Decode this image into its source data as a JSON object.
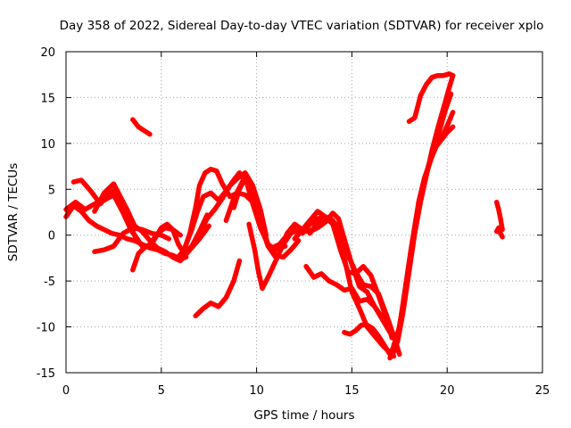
{
  "chart_data": {
    "type": "line",
    "title": "Day 358 of 2022, Sidereal Day-to-day VTEC variation (SDTVAR) for receiver xplo",
    "xlabel": "GPS time / hours",
    "ylabel": "SDTVAR / TECUs",
    "xlim": [
      0,
      25
    ],
    "ylim": [
      -15,
      20
    ],
    "xticks": [
      0,
      5,
      10,
      15,
      20,
      25
    ],
    "yticks": [
      -15,
      -10,
      -5,
      0,
      5,
      10,
      15,
      20
    ],
    "grid": true,
    "legend": "none",
    "series_color": "#ff0000",
    "series": [
      {
        "x": [
          0.0,
          0.4,
          0.8,
          1.2,
          1.6,
          2.0,
          2.4,
          2.8,
          3.2,
          3.6,
          4.0,
          4.4,
          4.8,
          5.2,
          5.6,
          6.0,
          6.3
        ],
        "y": [
          2.0,
          3.2,
          2.6,
          1.6,
          1.0,
          0.6,
          0.2,
          0.0,
          -0.4,
          -0.6,
          -1.0,
          -1.4,
          -1.6,
          -2.0,
          -2.2,
          -2.6,
          -2.4
        ]
      },
      {
        "x": [
          0.0,
          0.5,
          1.0,
          1.5,
          2.0,
          2.5,
          3.0,
          3.4,
          3.8
        ],
        "y": [
          2.8,
          3.6,
          2.8,
          3.4,
          3.8,
          4.4,
          2.4,
          0.6,
          -0.6
        ]
      },
      {
        "x": [
          0.4,
          0.8,
          1.3,
          1.8,
          2.2,
          2.6,
          3.0,
          3.4,
          3.7,
          4.0
        ],
        "y": [
          5.8,
          6.0,
          4.8,
          3.4,
          4.4,
          5.0,
          2.8,
          0.8,
          -0.4,
          -1.2
        ]
      },
      {
        "x": [
          1.5,
          2.0,
          2.5,
          2.8,
          3.2,
          3.6,
          4.0,
          4.4,
          4.8,
          5.2,
          5.6,
          6.0,
          6.5,
          7.0,
          7.5
        ],
        "y": [
          2.6,
          4.6,
          5.6,
          4.4,
          2.8,
          1.0,
          0.4,
          -0.6,
          -1.4,
          -1.8,
          -2.4,
          -2.8,
          -1.6,
          -0.4,
          1.0
        ]
      },
      {
        "x": [
          1.5,
          2.0,
          2.5,
          3.0,
          3.5,
          4.0,
          4.5,
          5.0,
          5.4
        ],
        "y": [
          -1.8,
          -1.6,
          -1.2,
          0.2,
          0.8,
          0.6,
          0.2,
          0.0,
          -0.4
        ]
      },
      {
        "x": [
          3.5,
          3.8,
          4.1,
          4.4,
          4.8,
          5.2,
          5.6,
          6.0
        ],
        "y": [
          -3.8,
          -2.0,
          -1.4,
          -1.0,
          0.2,
          0.8,
          0.6,
          0.0
        ]
      },
      {
        "x": [
          3.5,
          3.8,
          4.1,
          4.4
        ],
        "y": [
          12.6,
          11.8,
          11.4,
          11.0
        ]
      },
      {
        "x": [
          4.6,
          5.0,
          5.3,
          5.6,
          5.9,
          6.2,
          6.6,
          7.0,
          7.4
        ],
        "y": [
          -0.6,
          0.8,
          1.2,
          0.6,
          -1.0,
          -2.0,
          -1.2,
          0.4,
          2.2
        ]
      },
      {
        "x": [
          5.8,
          6.2,
          6.5,
          6.8,
          7.0,
          7.3,
          7.6,
          7.9,
          8.2,
          8.6,
          9.0,
          9.4,
          9.8,
          10.2
        ],
        "y": [
          -2.6,
          -1.6,
          0.2,
          3.0,
          5.4,
          6.8,
          7.2,
          7.0,
          5.6,
          4.2,
          4.6,
          4.4,
          3.6,
          1.8
        ]
      },
      {
        "x": [
          6.3,
          6.6,
          6.9,
          7.2,
          7.6,
          8.0,
          8.4,
          8.8,
          9.1,
          9.5,
          9.8,
          10.2,
          10.6,
          11.0,
          11.5
        ],
        "y": [
          -1.0,
          0.6,
          2.6,
          4.2,
          4.6,
          3.8,
          4.8,
          6.0,
          6.8,
          5.6,
          3.4,
          0.8,
          -1.0,
          -1.6,
          -1.2
        ]
      },
      {
        "x": [
          7.0,
          7.4,
          7.8,
          8.2,
          8.6,
          9.0,
          9.4,
          9.8,
          10.2,
          10.5
        ],
        "y": [
          0.2,
          1.8,
          2.8,
          4.0,
          5.4,
          6.2,
          6.8,
          5.4,
          2.8,
          0.0
        ]
      },
      {
        "x": [
          8.4,
          8.8,
          9.1,
          9.4,
          9.7,
          10.0,
          10.3,
          10.6,
          11.0
        ],
        "y": [
          1.6,
          4.0,
          5.2,
          6.4,
          5.2,
          2.8,
          0.6,
          -1.2,
          -2.4
        ]
      },
      {
        "x": [
          8.8,
          9.1,
          9.4,
          9.7,
          10.0,
          10.3,
          10.6,
          11.0,
          11.4,
          11.8,
          12.2
        ],
        "y": [
          3.0,
          5.0,
          6.2,
          5.6,
          3.4,
          1.0,
          -1.0,
          -2.2,
          -2.4,
          -1.6,
          -0.6
        ]
      },
      {
        "x": [
          6.8,
          7.2,
          7.6,
          8.0,
          8.4,
          8.8,
          9.1
        ],
        "y": [
          -8.8,
          -8.0,
          -7.4,
          -7.8,
          -6.8,
          -5.0,
          -2.8
        ]
      },
      {
        "x": [
          9.6,
          9.9,
          10.1,
          10.3,
          10.6,
          11.0,
          11.4,
          11.8,
          12.2,
          12.6,
          13.0
        ],
        "y": [
          1.2,
          -1.6,
          -4.0,
          -5.8,
          -4.6,
          -2.8,
          -1.0,
          0.2,
          0.8,
          0.4,
          0.6
        ]
      },
      {
        "x": [
          10.8,
          11.2,
          11.6,
          12.0,
          12.4,
          12.8,
          13.2,
          13.6,
          14.0,
          14.4,
          14.8,
          15.2,
          15.6,
          16.0,
          16.4,
          16.8,
          17.2,
          17.5
        ],
        "y": [
          -1.4,
          -1.0,
          0.0,
          0.4,
          0.2,
          1.2,
          1.8,
          2.0,
          1.6,
          0.4,
          -2.2,
          -4.0,
          -5.4,
          -5.6,
          -6.4,
          -8.6,
          -11.0,
          -13.0
        ]
      },
      {
        "x": [
          11.2,
          11.6,
          12.0,
          12.4,
          12.8,
          13.2,
          13.6,
          14.0,
          14.3,
          14.6,
          15.0,
          15.4,
          15.8,
          16.2,
          16.6,
          17.0
        ],
        "y": [
          -1.8,
          0.2,
          1.2,
          0.6,
          0.4,
          0.8,
          1.4,
          2.4,
          1.8,
          -0.4,
          -3.2,
          -5.6,
          -6.2,
          -7.8,
          -9.2,
          -10.6
        ]
      },
      {
        "x": [
          12.0,
          12.4,
          12.8,
          13.2,
          13.6,
          14.0,
          14.4,
          14.8,
          15.2,
          15.6,
          16.0,
          16.4,
          16.8,
          17.1
        ],
        "y": [
          -0.4,
          0.6,
          1.6,
          2.6,
          2.0,
          1.2,
          -1.6,
          -4.0,
          -4.2,
          -3.4,
          -4.4,
          -6.6,
          -9.0,
          -11.2
        ]
      },
      {
        "x": [
          12.8,
          13.2,
          13.6,
          14.0,
          14.4,
          14.7,
          15.0,
          15.4,
          15.8,
          16.2,
          16.6,
          17.0,
          17.3
        ],
        "y": [
          0.2,
          1.4,
          2.0,
          1.6,
          -0.6,
          -3.4,
          -6.2,
          -8.0,
          -10.0,
          -11.0,
          -12.0,
          -12.8,
          -12.4
        ]
      },
      {
        "x": [
          12.6,
          13.0,
          13.4,
          13.8,
          14.2,
          14.6,
          15.0,
          15.4,
          15.8,
          16.2,
          16.6,
          16.9
        ],
        "y": [
          -3.4,
          -4.6,
          -4.2,
          -5.0,
          -5.4,
          -6.0,
          -5.8,
          -7.2,
          -7.0,
          -7.8,
          -9.0,
          -10.2
        ]
      },
      {
        "x": [
          14.6,
          14.9,
          15.2,
          15.5,
          15.8,
          16.1,
          16.4,
          16.7,
          17.0,
          17.2
        ],
        "y": [
          -10.6,
          -10.8,
          -10.4,
          -9.8,
          -9.8,
          -10.2,
          -11.0,
          -12.0,
          -13.0,
          -13.2
        ]
      },
      {
        "x": [
          17.0,
          17.3,
          17.6,
          17.9,
          18.2,
          18.5,
          18.8,
          19.1,
          19.4,
          19.7,
          20.0,
          20.3
        ],
        "y": [
          -13.4,
          -12.4,
          -9.4,
          -5.0,
          -0.4,
          3.6,
          6.2,
          8.0,
          9.6,
          10.4,
          11.2,
          11.8
        ]
      },
      {
        "x": [
          17.1,
          17.4,
          17.7,
          18.0,
          18.3,
          18.6,
          18.9,
          19.2,
          19.5,
          19.8,
          20.1,
          20.3
        ],
        "y": [
          -12.6,
          -11.0,
          -7.4,
          -3.0,
          1.0,
          4.2,
          6.6,
          8.6,
          10.0,
          11.0,
          12.4,
          13.4
        ]
      },
      {
        "x": [
          17.2,
          17.5,
          17.8,
          18.1,
          18.4,
          18.7,
          19.0,
          19.3,
          19.6,
          19.9,
          20.2
        ],
        "y": [
          -12.0,
          -10.0,
          -5.8,
          -1.6,
          2.2,
          5.0,
          7.4,
          9.6,
          11.4,
          13.6,
          15.4
        ]
      },
      {
        "x": [
          17.4,
          17.7,
          18.0,
          18.3,
          18.6,
          18.9,
          19.2,
          19.5,
          19.8,
          20.1,
          20.3
        ],
        "y": [
          -11.6,
          -8.2,
          -4.0,
          0.2,
          3.6,
          6.4,
          9.2,
          11.6,
          13.8,
          16.0,
          17.4
        ]
      },
      {
        "x": [
          18.0,
          18.3,
          18.6,
          18.9,
          19.2,
          19.5,
          19.8,
          20.1,
          20.3
        ],
        "y": [
          12.4,
          12.8,
          15.2,
          16.4,
          17.2,
          17.4,
          17.4,
          17.6,
          17.4
        ]
      },
      {
        "x": [
          22.6,
          22.7,
          22.8,
          22.9
        ],
        "y": [
          3.6,
          2.8,
          1.8,
          0.6
        ]
      },
      {
        "x": [
          22.6,
          22.7,
          22.8,
          22.9
        ],
        "y": [
          0.4,
          0.8,
          0.2,
          -0.2
        ]
      }
    ]
  }
}
